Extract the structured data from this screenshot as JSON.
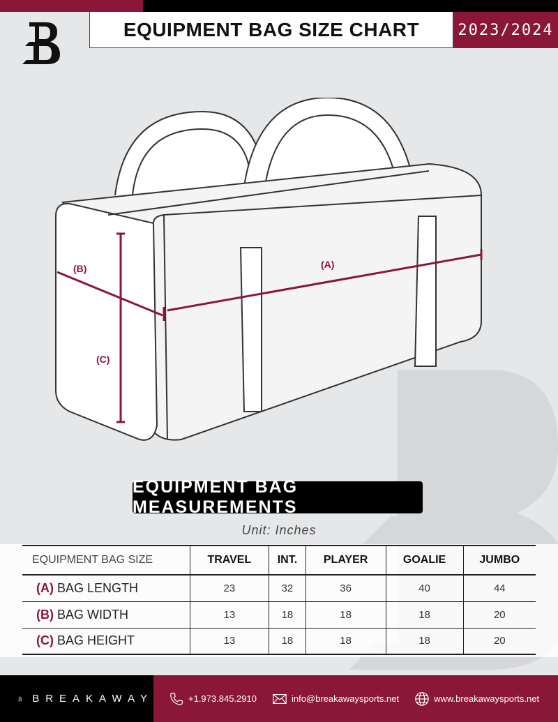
{
  "header": {
    "title": "EQUIPMENT BAG SIZE CHART",
    "season": "2023/2024",
    "logo_letter": "B"
  },
  "diagram": {
    "labels": {
      "a": "(A)",
      "b": "(B)",
      "c": "(C)"
    },
    "accent": "#8a1737"
  },
  "measurements": {
    "title": "EQUIPMENT BAG MEASUREMENTS",
    "unit": "Unit: Inches"
  },
  "table": {
    "corner": "EQUIPMENT BAG SIZE",
    "columns": [
      "TRAVEL",
      "INT.",
      "PLAYER",
      "GOALIE",
      "JUMBO"
    ],
    "rows": [
      {
        "code": "(A)",
        "label": "BAG LENGTH",
        "values": [
          "23",
          "32",
          "36",
          "40",
          "44"
        ]
      },
      {
        "code": "(B)",
        "label": "BAG WIDTH",
        "values": [
          "13",
          "18",
          "18",
          "18",
          "20"
        ]
      },
      {
        "code": "(C)",
        "label": "BAG HEIGHT",
        "values": [
          "13",
          "18",
          "18",
          "18",
          "20"
        ]
      }
    ]
  },
  "footer": {
    "brand": "BREAKAWAY",
    "phone": "+1.973.845.2910",
    "email": "info@breakawaysports.net",
    "website": "www.breakawaysports.net"
  },
  "colors": {
    "brand_red": "#8a1737",
    "black": "#000000",
    "background": "#e6e7e9"
  }
}
